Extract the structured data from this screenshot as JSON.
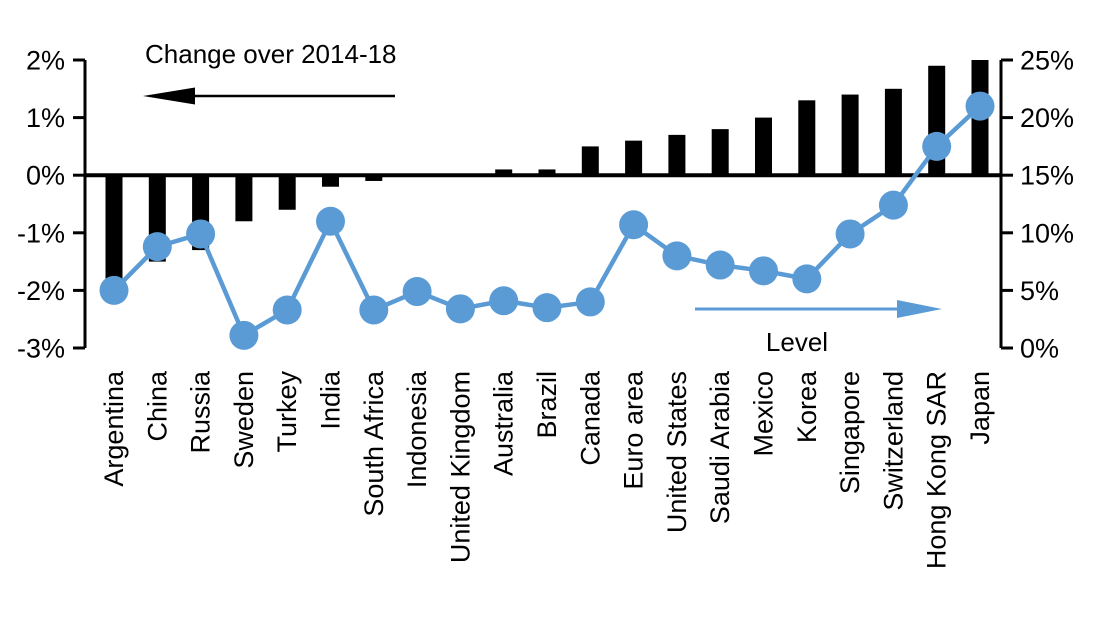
{
  "chart_data": {
    "type": "combo-bar-line",
    "title": "",
    "categories": [
      "Argentina",
      "China",
      "Russia",
      "Sweden",
      "Turkey",
      "India",
      "South Africa",
      "Indonesia",
      "United Kingdom",
      "Australia",
      "Brazil",
      "Canada",
      "Euro area",
      "United States",
      "Saudi Arabia",
      "Mexico",
      "Korea",
      "Singapore",
      "Switzerland",
      "Hong Kong SAR",
      "Japan"
    ],
    "series": [
      {
        "name": "Change over 2014-18",
        "type": "bar",
        "axis": "left",
        "color": "#000000",
        "values": [
          -1.8,
          -1.5,
          -1.3,
          -0.8,
          -0.6,
          -0.2,
          -0.1,
          0,
          0,
          0.1,
          0.1,
          0.5,
          0.6,
          0.7,
          0.8,
          1.0,
          1.3,
          1.4,
          1.5,
          1.9,
          2.0
        ]
      },
      {
        "name": "Level",
        "type": "line",
        "axis": "right",
        "color": "#5B9BD5",
        "values": [
          5.0,
          8.8,
          9.9,
          1.1,
          3.3,
          11.0,
          3.3,
          4.9,
          3.4,
          4.1,
          3.5,
          4.0,
          10.7,
          8.0,
          7.2,
          6.7,
          6.0,
          9.9,
          12.4,
          17.5,
          21.0
        ]
      }
    ],
    "left_axis": {
      "min": -3,
      "max": 2,
      "tick_labels": [
        "2%",
        "1%",
        "0%",
        "-1%",
        "-2%",
        "-3%"
      ]
    },
    "right_axis": {
      "min": 0,
      "max": 25,
      "tick_labels": [
        "25%",
        "20%",
        "15%",
        "10%",
        "5%",
        "0%"
      ]
    },
    "grid": false,
    "legend_position": "annotations-inside-plot",
    "annotations": [
      {
        "text": "Change over 2014-18",
        "arrow_direction": "left",
        "color": "#000000"
      },
      {
        "text": "Level",
        "arrow_direction": "right",
        "color": "#5B9BD5"
      }
    ]
  }
}
